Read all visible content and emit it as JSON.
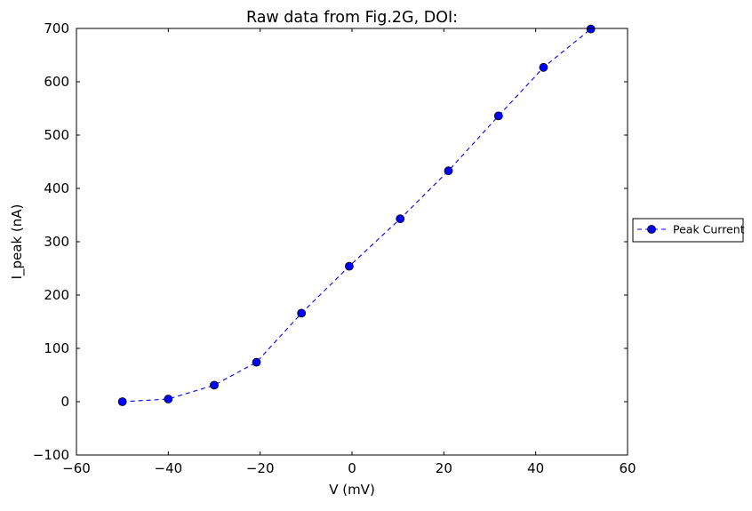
{
  "chart_data": {
    "type": "line",
    "title": "Raw data from Fig.2G, DOI:",
    "xlabel": "V (mV)",
    "ylabel": "I_peak (nA)",
    "xlim": [
      -60,
      60
    ],
    "ylim": [
      -100,
      700
    ],
    "xticks": [
      -60,
      -40,
      -20,
      0,
      20,
      40,
      60
    ],
    "yticks": [
      -100,
      0,
      100,
      200,
      300,
      400,
      500,
      600,
      700
    ],
    "xtick_labels": [
      "−60",
      "−40",
      "−20",
      "0",
      "20",
      "40",
      "60"
    ],
    "ytick_labels": [
      "−100",
      "0",
      "100",
      "200",
      "300",
      "400",
      "500",
      "600",
      "700"
    ],
    "grid": false,
    "legend_position": "outside right",
    "series": [
      {
        "name": "Peak Current",
        "color": "#0000ff",
        "line_style": "dashed",
        "marker": "circle",
        "x": [
          -50,
          -40,
          -30,
          -20.8,
          -11,
          -0.6,
          10.5,
          21,
          31.9,
          41.7,
          52
        ],
        "y": [
          0,
          5,
          31,
          74,
          166,
          254,
          343,
          433,
          536,
          627,
          699
        ]
      }
    ]
  }
}
